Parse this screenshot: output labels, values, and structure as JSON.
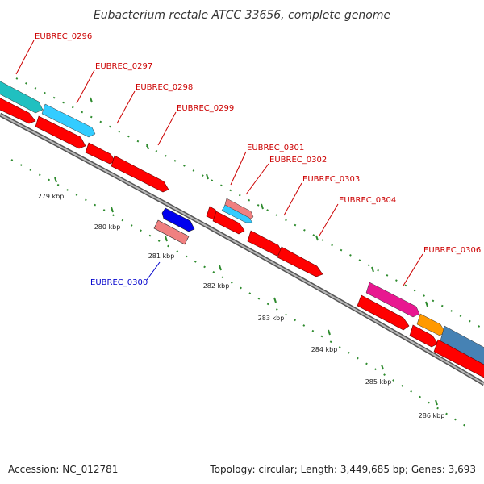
{
  "title": "Eubacterium rectale ATCC 33656, complete genome",
  "footer": {
    "accession": "Accession: NC_012781",
    "summary": "Topology: circular; Length: 3,449,685 bp; Genes: 3,693"
  },
  "colors": {
    "forward_label": "#cc0000",
    "reverse_label": "#0000cc",
    "backbone": "#888888",
    "tick": "#2e8b2e",
    "red_gene": "#ff0000",
    "blue_gene": "#0000ee",
    "salmon_gene": "#f08080",
    "cyan_gene": "#33ccff",
    "teal_gene": "#20c0c0",
    "magenta_gene": "#e81890",
    "orange_gene": "#ff9900",
    "steel_gene": "#4682b4"
  },
  "tick_labels": [
    "279 kbp",
    "280 kbp",
    "281 kbp",
    "282 kbp",
    "283 kbp",
    "284 kbp",
    "285 kbp",
    "286 kbp"
  ],
  "gene_labels": [
    {
      "text": "EUBREC_0296",
      "strand": "forward"
    },
    {
      "text": "EUBREC_0297",
      "strand": "forward"
    },
    {
      "text": "EUBREC_0298",
      "strand": "forward"
    },
    {
      "text": "EUBREC_0299",
      "strand": "forward"
    },
    {
      "text": "EUBREC_0301",
      "strand": "forward"
    },
    {
      "text": "EUBREC_0302",
      "strand": "forward"
    },
    {
      "text": "EUBREC_0303",
      "strand": "forward"
    },
    {
      "text": "EUBREC_0304",
      "strand": "forward"
    },
    {
      "text": "EUBREC_0306",
      "strand": "forward"
    },
    {
      "text": "EUBREC_0300",
      "strand": "reverse"
    }
  ]
}
